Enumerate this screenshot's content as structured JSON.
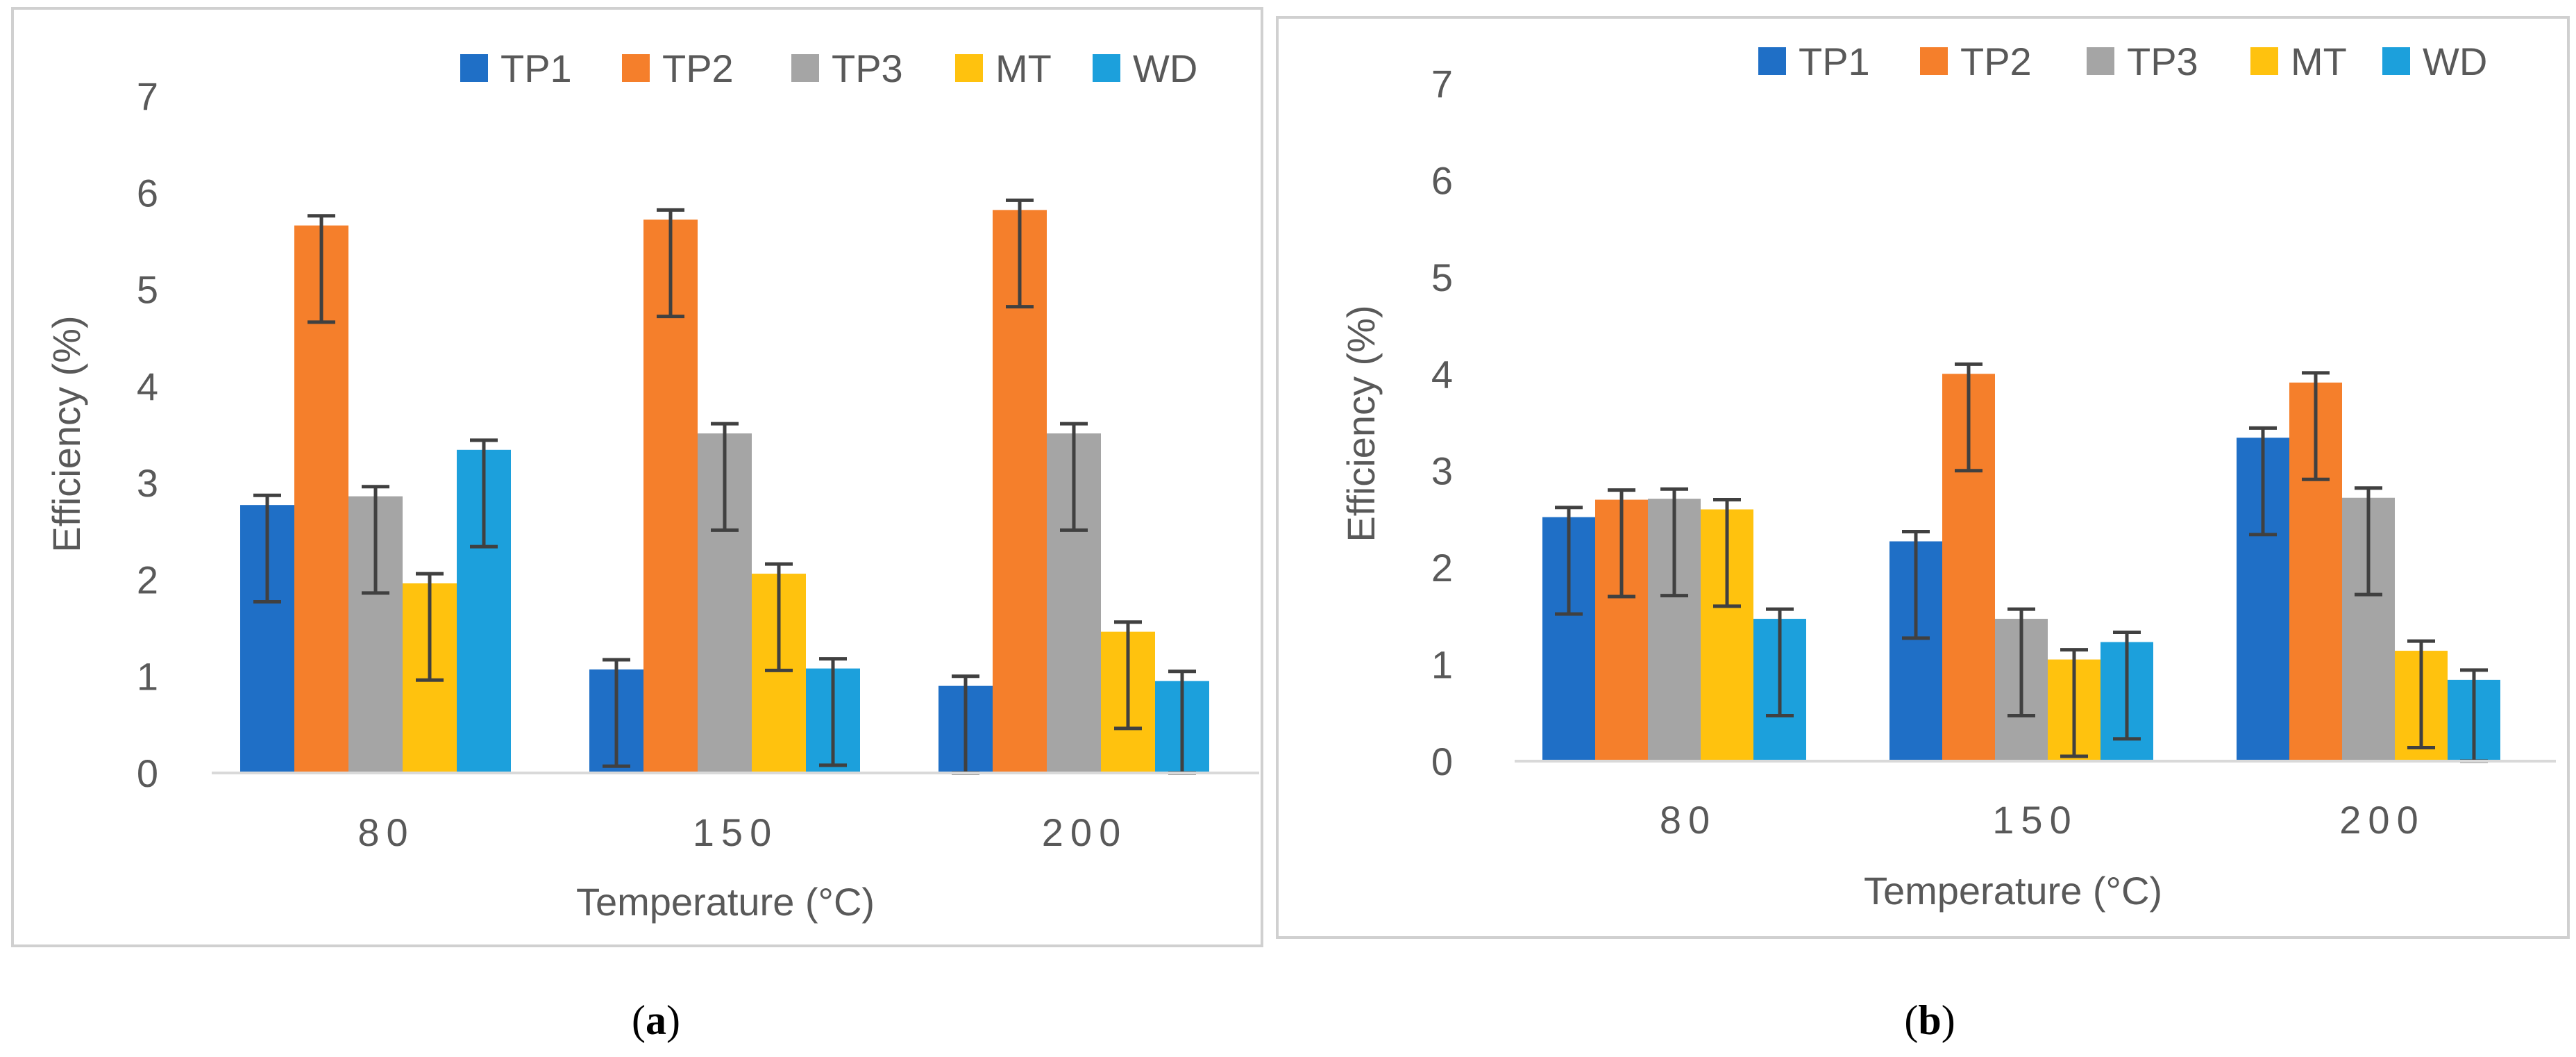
{
  "chart_data": [
    {
      "panel": "(a)",
      "panel_letter": "a",
      "type": "bar",
      "title": "",
      "xlabel": "Temperature (°C)",
      "ylabel": "Efficiency (%)",
      "ylim": [
        0,
        7
      ],
      "yticks": [
        "0",
        "1",
        "2",
        "3",
        "4",
        "5",
        "6",
        "7"
      ],
      "gridlines": false,
      "legend_position": "top-right",
      "categories": [
        "80",
        "150",
        "200"
      ],
      "series": [
        {
          "name": "TP1",
          "color": "#1f6fc6",
          "values": [
            2.77,
            1.07,
            0.9
          ],
          "errors": [
            1.0,
            1.0,
            0.9
          ]
        },
        {
          "name": "TP2",
          "color": "#f57f2b",
          "values": [
            5.66,
            5.72,
            5.82
          ],
          "errors": [
            1.0,
            1.0,
            1.0
          ]
        },
        {
          "name": "TP3",
          "color": "#a5a5a5",
          "values": [
            2.86,
            3.51,
            3.51
          ],
          "errors": [
            1.0,
            1.0,
            1.0
          ]
        },
        {
          "name": "MT",
          "color": "#ffc20e",
          "values": [
            1.96,
            2.06,
            1.46
          ],
          "errors": [
            1.0,
            1.0,
            1.0
          ]
        },
        {
          "name": "WD",
          "color": "#1ca0dc",
          "values": [
            3.34,
            1.08,
            0.95
          ],
          "errors": [
            1.0,
            1.0,
            0.95
          ]
        }
      ]
    },
    {
      "panel": "(b)",
      "panel_letter": "b",
      "type": "bar",
      "title": "",
      "xlabel": "Temperature (°C)",
      "ylabel": "Efficiency (%)",
      "ylim": [
        0,
        7
      ],
      "yticks": [
        "0",
        "1",
        "2",
        "3",
        "4",
        "5",
        "6",
        "7"
      ],
      "gridlines": false,
      "legend_position": "top-right",
      "categories": [
        "80",
        "150",
        "200"
      ],
      "series": [
        {
          "name": "TP1",
          "color": "#1f6fc6",
          "values": [
            2.52,
            2.27,
            3.34
          ],
          "errors": [
            1.0,
            1.0,
            1.0
          ]
        },
        {
          "name": "TP2",
          "color": "#f57f2b",
          "values": [
            2.7,
            4.0,
            3.91
          ],
          "errors": [
            1.0,
            1.0,
            1.0
          ]
        },
        {
          "name": "TP3",
          "color": "#a5a5a5",
          "values": [
            2.71,
            1.47,
            2.72
          ],
          "errors": [
            1.0,
            1.0,
            1.0
          ]
        },
        {
          "name": "MT",
          "color": "#ffc20e",
          "values": [
            2.6,
            1.05,
            1.14
          ],
          "errors": [
            1.0,
            1.0,
            1.0
          ]
        },
        {
          "name": "WD",
          "color": "#1ca0dc",
          "values": [
            1.47,
            1.23,
            0.84
          ],
          "errors": [
            1.0,
            1.0,
            0.84
          ]
        }
      ]
    }
  ]
}
